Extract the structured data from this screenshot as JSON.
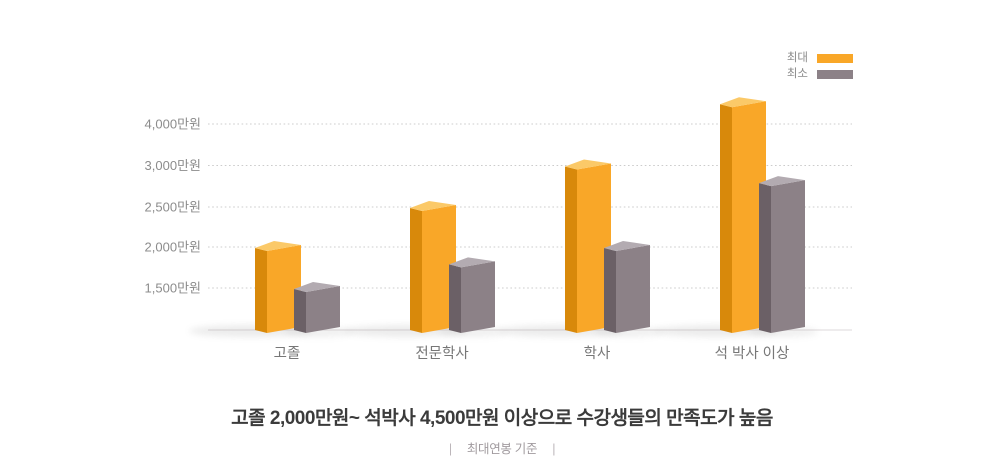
{
  "page": {
    "background": "#ffffff"
  },
  "chart_data": {
    "type": "bar",
    "style": "3d-column",
    "categories": [
      "고졸",
      "전문학사",
      "학사",
      "석 박사 이상"
    ],
    "series": [
      {
        "name": "최대",
        "color": "#F9A728",
        "color_top": "#FBC968",
        "color_side": "#D8890B",
        "values": [
          2000,
          2500,
          3000,
          4500
        ]
      },
      {
        "name": "최소",
        "color": "#8C8187",
        "color_top": "#B3ABB1",
        "color_side": "#6B6066",
        "values": [
          1500,
          1800,
          2000,
          2800
        ]
      }
    ],
    "unit": "만원",
    "y_ticks": [
      {
        "value": 4000,
        "label": "4,000만원"
      },
      {
        "value": 3000,
        "label": "3,000만원"
      },
      {
        "value": 2500,
        "label": "2,500만원"
      },
      {
        "value": 2000,
        "label": "2,000만원"
      },
      {
        "value": 1500,
        "label": "1,500만원"
      }
    ],
    "axis_min": 1000,
    "grid": "dotted-horizontal",
    "grid_color": "#cccccc",
    "baseline_color": "#e9e6e7",
    "tick_label_color": "#8c8c8c",
    "category_label_color": "#777777",
    "legend_position": "top-right"
  },
  "caption": {
    "title": "고졸 2,000만원~ 석박사 4,500만원 이상으로 수강생들의 만족도가 높음",
    "separator": "|",
    "subtitle": "최대연봉 기준"
  }
}
